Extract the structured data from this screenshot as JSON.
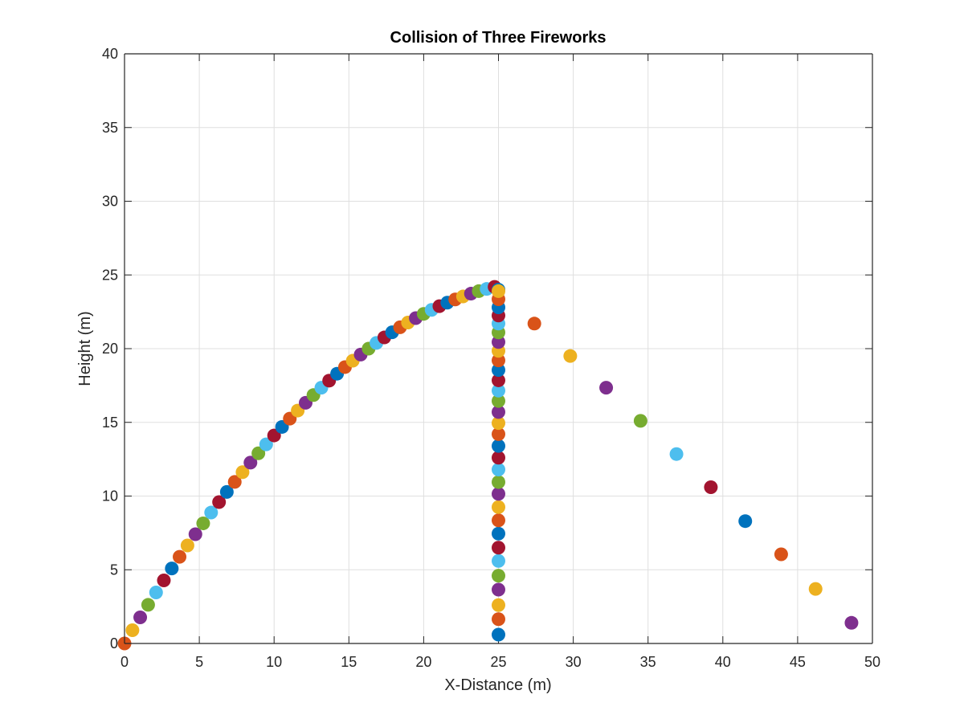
{
  "chart_data": {
    "type": "scatter",
    "title": "Collision of Three Fireworks",
    "xlabel": "X-Distance (m)",
    "ylabel": "Height (m)",
    "xlim": [
      0,
      50
    ],
    "ylim": [
      0,
      40
    ],
    "xticks": [
      0,
      5,
      10,
      15,
      20,
      25,
      30,
      35,
      40,
      45,
      50
    ],
    "yticks": [
      0,
      5,
      10,
      15,
      20,
      25,
      30,
      35,
      40
    ],
    "grid": true,
    "box": true,
    "colors": [
      "#0072BD",
      "#D95319",
      "#EDB120",
      "#7E2F8E",
      "#77AC30",
      "#4DBEEE",
      "#A2142F"
    ],
    "series": [
      {
        "color_order_start": 1,
        "x": [
          0,
          0.53,
          1.05,
          1.58,
          2.11,
          2.63,
          3.16,
          3.68,
          4.21,
          4.74,
          5.26,
          5.79,
          6.32,
          6.84,
          7.37,
          7.89,
          8.42,
          8.95,
          9.47,
          10.0,
          10.53,
          11.05,
          11.58,
          12.11,
          12.63,
          13.16,
          13.68,
          14.21,
          14.74,
          15.26,
          15.79,
          16.32,
          16.84,
          17.37,
          17.89,
          18.42,
          18.95,
          19.47,
          20.0,
          20.53,
          21.05,
          21.58,
          22.11,
          22.63,
          23.16,
          23.68,
          24.21,
          24.74,
          25.0
        ],
        "y": [
          0,
          0.9,
          1.77,
          2.62,
          3.46,
          4.28,
          5.09,
          5.88,
          6.65,
          7.41,
          8.15,
          8.88,
          9.59,
          10.28,
          10.96,
          11.62,
          12.27,
          12.9,
          13.51,
          14.11,
          14.69,
          15.25,
          15.8,
          16.33,
          16.85,
          17.35,
          17.83,
          18.3,
          18.75,
          19.18,
          19.6,
          20.0,
          20.39,
          20.76,
          21.11,
          21.45,
          21.77,
          22.07,
          22.36,
          22.63,
          22.88,
          23.12,
          23.34,
          23.54,
          23.73,
          23.9,
          24.05,
          24.19,
          24.0
        ]
      },
      {
        "color_order_start": 0,
        "x": [
          25,
          25,
          25,
          25,
          25,
          25,
          25,
          25,
          25,
          25,
          25,
          25,
          25,
          25,
          25,
          25,
          25,
          25,
          25,
          25,
          25,
          25,
          25,
          25,
          25,
          25,
          25,
          25,
          25,
          25,
          25
        ],
        "y": [
          0.6,
          1.65,
          2.6,
          3.65,
          4.6,
          5.6,
          6.5,
          7.45,
          8.35,
          9.25,
          10.15,
          10.95,
          11.8,
          12.6,
          13.4,
          14.2,
          14.95,
          15.7,
          16.45,
          17.15,
          17.85,
          18.55,
          19.2,
          19.85,
          20.45,
          21.1,
          21.7,
          22.25,
          22.8,
          23.35,
          23.9
        ]
      },
      {
        "color_order_start": 1,
        "x": [
          27.4,
          29.8,
          32.2,
          34.5,
          36.9,
          39.2,
          41.5,
          43.9,
          46.2,
          48.6
        ],
        "y": [
          21.7,
          19.5,
          17.35,
          15.1,
          12.85,
          10.6,
          8.3,
          6.05,
          3.7,
          1.4
        ]
      }
    ]
  }
}
